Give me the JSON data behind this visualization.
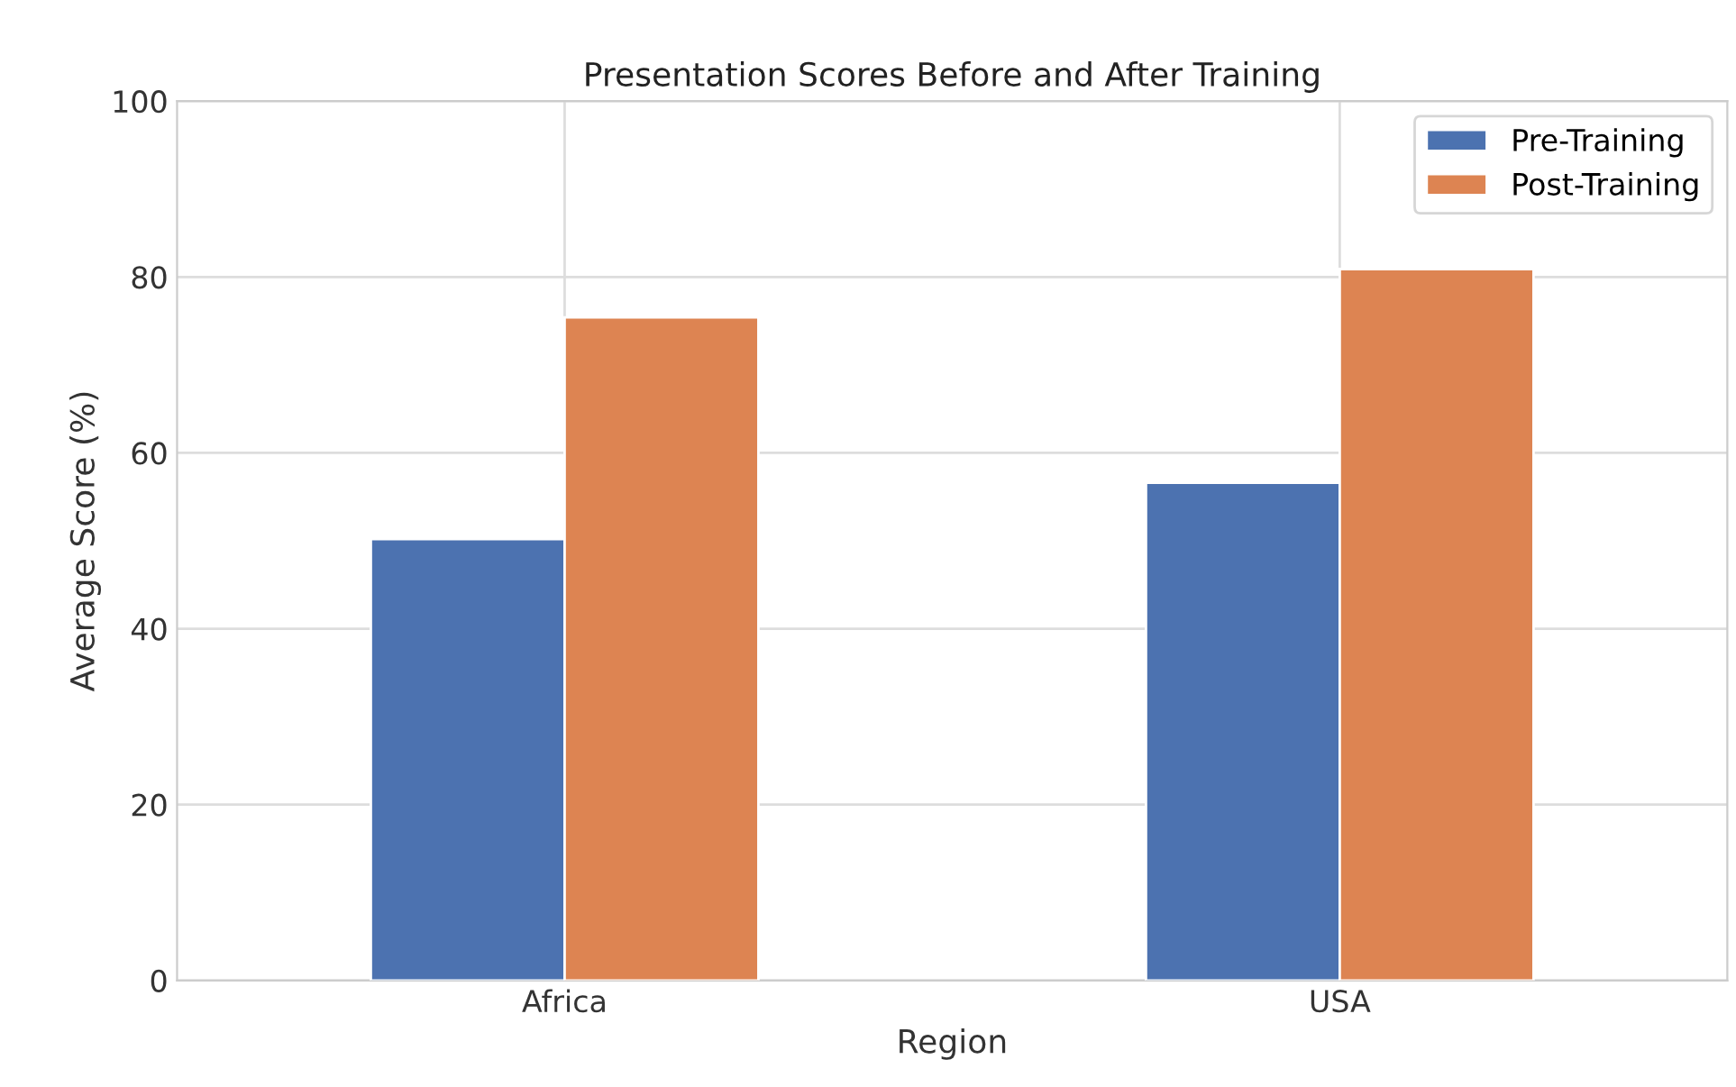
{
  "chart_data": {
    "type": "bar",
    "title": "Presentation Scores Before and After Training",
    "xlabel": "Region",
    "ylabel": "Average Score (%)",
    "categories": [
      "Africa",
      "USA"
    ],
    "series": [
      {
        "name": "Pre-Training",
        "color": "#4c72b0",
        "values": [
          50.2,
          56.6
        ]
      },
      {
        "name": "Post-Training",
        "color": "#dd8452",
        "values": [
          75.4,
          80.9
        ]
      }
    ],
    "ylim": [
      0,
      100
    ],
    "yticks": [
      0,
      20,
      40,
      60,
      80,
      100
    ],
    "grid": true,
    "legend": "top right"
  }
}
